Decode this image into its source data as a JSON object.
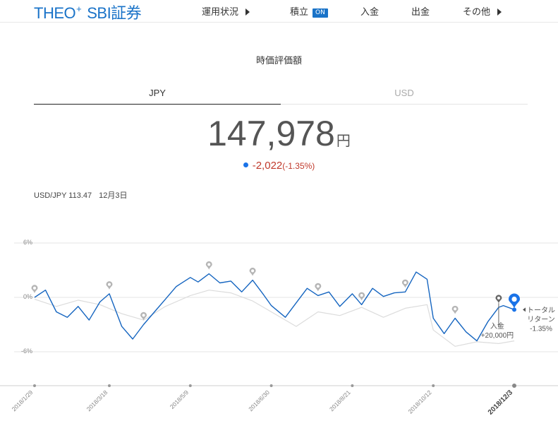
{
  "header": {
    "logo_main": "THEO",
    "logo_plus": "+",
    "logo_sub": "SBI証券",
    "nav": [
      {
        "label": "運用状況",
        "has_arrow": true
      },
      {
        "label": "積立",
        "badge": "ON"
      },
      {
        "label": "入金"
      },
      {
        "label": "出金"
      },
      {
        "label": "その他",
        "has_arrow": true
      }
    ]
  },
  "summary": {
    "title": "時価評価額",
    "tabs": [
      {
        "label": "JPY",
        "active": true
      },
      {
        "label": "USD",
        "active": false
      }
    ],
    "amount": "147,978",
    "currency_unit": "円",
    "change_value": "-2,022",
    "change_percent": "(-1.35%)",
    "fx_label": "USD/JPY 113.47",
    "fx_date": "12月3日"
  },
  "chart_data": {
    "type": "line",
    "y_tick_labels": [
      "6%",
      "0%",
      "-6%"
    ],
    "ylim": [
      -10,
      6
    ],
    "x_tick_labels": [
      "2018/1/29",
      "2018/3/18",
      "2018/5/9",
      "2018/6/30",
      "2018/8/21",
      "2018/10/12",
      "2018/12/3"
    ],
    "x_range": [
      "2018-01-29",
      "2018-12-03"
    ],
    "series": [
      {
        "color": "#1565c0",
        "x": [
          "2018-01-29",
          "2018-02-05",
          "2018-02-12",
          "2018-02-19",
          "2018-02-26",
          "2018-03-05",
          "2018-03-12",
          "2018-03-18",
          "2018-03-26",
          "2018-04-02",
          "2018-04-09",
          "2018-04-16",
          "2018-04-23",
          "2018-04-30",
          "2018-05-09",
          "2018-05-14",
          "2018-05-21",
          "2018-05-28",
          "2018-06-04",
          "2018-06-11",
          "2018-06-18",
          "2018-06-25",
          "2018-06-30",
          "2018-07-09",
          "2018-07-16",
          "2018-07-23",
          "2018-07-30",
          "2018-08-06",
          "2018-08-13",
          "2018-08-21",
          "2018-08-27",
          "2018-09-03",
          "2018-09-10",
          "2018-09-17",
          "2018-09-24",
          "2018-10-01",
          "2018-10-08",
          "2018-10-12",
          "2018-10-19",
          "2018-10-26",
          "2018-11-02",
          "2018-11-09",
          "2018-11-16",
          "2018-11-23",
          "2018-11-26",
          "2018-12-03"
        ],
        "values": [
          0,
          0.8,
          -1.6,
          -2.2,
          -1.0,
          -2.5,
          -0.5,
          0.4,
          -3.2,
          -4.6,
          -3.0,
          -1.6,
          -0.2,
          1.2,
          2.2,
          1.7,
          2.6,
          1.6,
          1.8,
          0.6,
          1.9,
          0.3,
          -0.9,
          -2.2,
          -0.6,
          1.0,
          0.2,
          0.6,
          -1.0,
          0.4,
          -0.8,
          1.0,
          0.1,
          0.5,
          0.6,
          2.8,
          2.0,
          -2.3,
          -4.0,
          -2.3,
          -3.8,
          -4.8,
          -2.7,
          -1.1,
          -0.9,
          -1.35
        ]
      },
      {
        "color": "#dcdcdc",
        "x": [
          "2018-01-29",
          "2018-02-12",
          "2018-02-26",
          "2018-03-12",
          "2018-03-26",
          "2018-04-09",
          "2018-04-23",
          "2018-05-09",
          "2018-05-21",
          "2018-06-04",
          "2018-06-18",
          "2018-06-30",
          "2018-07-16",
          "2018-07-30",
          "2018-08-13",
          "2018-08-27",
          "2018-09-10",
          "2018-09-24",
          "2018-10-08",
          "2018-10-12",
          "2018-10-26",
          "2018-11-09",
          "2018-11-23",
          "2018-12-03"
        ],
        "values": [
          -0.2,
          -1.0,
          -0.3,
          -0.8,
          -1.8,
          -2.5,
          -1.0,
          0.2,
          0.8,
          0.5,
          -0.4,
          -1.6,
          -3.2,
          -1.6,
          -2.0,
          -1.1,
          -2.2,
          -1.2,
          -0.8,
          -3.6,
          -5.4,
          -4.9,
          -5.1,
          -4.8
        ]
      }
    ],
    "markers": [
      {
        "x": "2018-01-29",
        "type": "event"
      },
      {
        "x": "2018-03-18",
        "type": "event"
      },
      {
        "x": "2018-04-09",
        "type": "event"
      },
      {
        "x": "2018-05-21",
        "type": "event"
      },
      {
        "x": "2018-06-18",
        "type": "event"
      },
      {
        "x": "2018-07-30",
        "type": "event"
      },
      {
        "x": "2018-08-27",
        "type": "event"
      },
      {
        "x": "2018-09-24",
        "type": "event"
      },
      {
        "x": "2018-10-26",
        "type": "event"
      },
      {
        "x": "2018-11-23",
        "type": "deposit",
        "label": "入金",
        "amount": "+20,000円"
      },
      {
        "x": "2018-12-03",
        "type": "current"
      }
    ],
    "annotation": {
      "label": "トータル\nリターン",
      "value": "-1.35%"
    }
  }
}
